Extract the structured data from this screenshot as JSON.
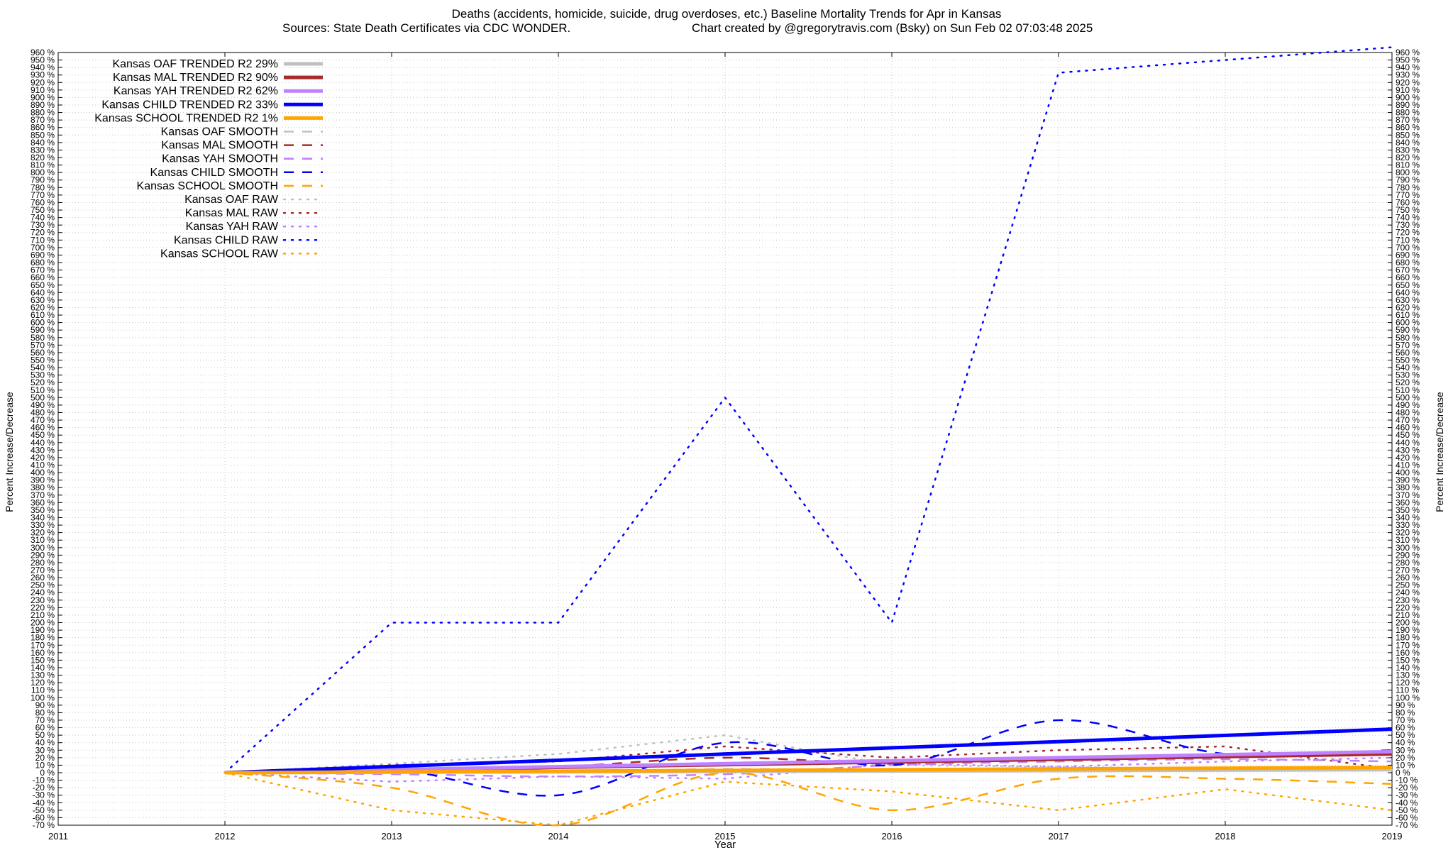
{
  "chart_data": {
    "type": "line",
    "title_line1": "Deaths (accidents, homicide, suicide, drug overdoses, etc.)  Baseline Mortality Trends for Apr in Kansas",
    "title_line2_left": "Sources: State Death Certificates via CDC WONDER.",
    "title_line2_right": "Chart created by @gregorytravis.com (Bsky) on Sun Feb 02 07:03:48 2025",
    "xlabel": "Year",
    "ylabel_left": "Percent Increase/Decrease",
    "ylabel_right": "Percent Increase/Decrease",
    "xlim": [
      2011,
      2019
    ],
    "ylim": [
      -70,
      960
    ],
    "y_tick_step": 10,
    "y_tick_suffix": " %",
    "x_ticks": [
      2011,
      2012,
      2013,
      2014,
      2015,
      2016,
      2017,
      2018,
      2019
    ],
    "grid": true,
    "legend_position": "top-left",
    "series": [
      {
        "name": "Kansas OAF TRENDED R2  29%",
        "style": "trend",
        "color": "#c0c0c0",
        "x": [
          2012,
          2019
        ],
        "y": [
          0,
          4
        ]
      },
      {
        "name": "Kansas MAL TRENDED R2  90%",
        "style": "trend",
        "color": "#a52a2a",
        "x": [
          2012,
          2019
        ],
        "y": [
          0,
          25
        ]
      },
      {
        "name": "Kansas YAH TRENDED R2  62%",
        "style": "trend",
        "color": "#c080ff",
        "x": [
          2012,
          2019
        ],
        "y": [
          0,
          28
        ]
      },
      {
        "name": "Kansas CHILD TRENDED R2  33%",
        "style": "trend",
        "color": "#0000ff",
        "x": [
          2012,
          2019
        ],
        "y": [
          0,
          58
        ]
      },
      {
        "name": "Kansas SCHOOL TRENDED R2   1%",
        "style": "trend",
        "color": "#ffa500",
        "x": [
          2012,
          2019
        ],
        "y": [
          0,
          7
        ]
      },
      {
        "name": "Kansas OAF SMOOTH",
        "style": "smooth",
        "color": "#c0c0c0",
        "x": [
          2012,
          2013,
          2014,
          2015,
          2016,
          2017,
          2018,
          2019
        ],
        "y": [
          0,
          2,
          1,
          5,
          3,
          4,
          3,
          3
        ]
      },
      {
        "name": "Kansas MAL SMOOTH",
        "style": "smooth",
        "color": "#a52a2a",
        "x": [
          2012,
          2013,
          2014,
          2015,
          2016,
          2017,
          2018,
          2019
        ],
        "y": [
          0,
          5,
          8,
          20,
          12,
          18,
          22,
          25
        ]
      },
      {
        "name": "Kansas YAH SMOOTH",
        "style": "smooth",
        "color": "#c080ff",
        "x": [
          2012,
          2013,
          2014,
          2015,
          2016,
          2017,
          2018,
          2019
        ],
        "y": [
          0,
          -2,
          -5,
          -2,
          10,
          15,
          18,
          15
        ]
      },
      {
        "name": "Kansas CHILD SMOOTH",
        "style": "smooth",
        "color": "#0000ff",
        "x": [
          2012,
          2013,
          2014,
          2015,
          2016,
          2017,
          2018,
          2019
        ],
        "y": [
          0,
          5,
          -30,
          40,
          10,
          70,
          25,
          30
        ]
      },
      {
        "name": "Kansas SCHOOL SMOOTH",
        "style": "smooth",
        "color": "#ffa500",
        "x": [
          2012,
          2013,
          2014,
          2015,
          2016,
          2017,
          2018,
          2019
        ],
        "y": [
          0,
          -20,
          -70,
          0,
          -50,
          -8,
          -8,
          -15
        ]
      },
      {
        "name": "Kansas OAF RAW",
        "style": "raw",
        "color": "#c0c0c0",
        "x": [
          2012,
          2013,
          2014,
          2015,
          2016,
          2017,
          2018,
          2019
        ],
        "y": [
          0,
          12,
          25,
          50,
          10,
          8,
          5,
          3
        ]
      },
      {
        "name": "Kansas MAL RAW",
        "style": "raw",
        "color": "#a52a2a",
        "x": [
          2012,
          2013,
          2014,
          2015,
          2016,
          2017,
          2018,
          2019
        ],
        "y": [
          0,
          10,
          15,
          35,
          20,
          30,
          35,
          5
        ]
      },
      {
        "name": "Kansas YAH RAW",
        "style": "raw",
        "color": "#c080ff",
        "x": [
          2012,
          2013,
          2014,
          2015,
          2016,
          2017,
          2018,
          2019
        ],
        "y": [
          0,
          -12,
          -5,
          -8,
          12,
          8,
          15,
          20
        ]
      },
      {
        "name": "Kansas CHILD RAW",
        "style": "raw",
        "color": "#0000ff",
        "x": [
          2012,
          2013,
          2014,
          2015,
          2016,
          2017,
          2018,
          2019
        ],
        "y": [
          0,
          200,
          200,
          500,
          200,
          933,
          950,
          967
        ]
      },
      {
        "name": "Kansas SCHOOL RAW",
        "style": "raw",
        "color": "#ffa500",
        "x": [
          2012,
          2013,
          2014,
          2015,
          2016,
          2017,
          2018,
          2019
        ],
        "y": [
          0,
          -50,
          -70,
          -12,
          -25,
          -50,
          -22,
          -50
        ]
      }
    ]
  }
}
